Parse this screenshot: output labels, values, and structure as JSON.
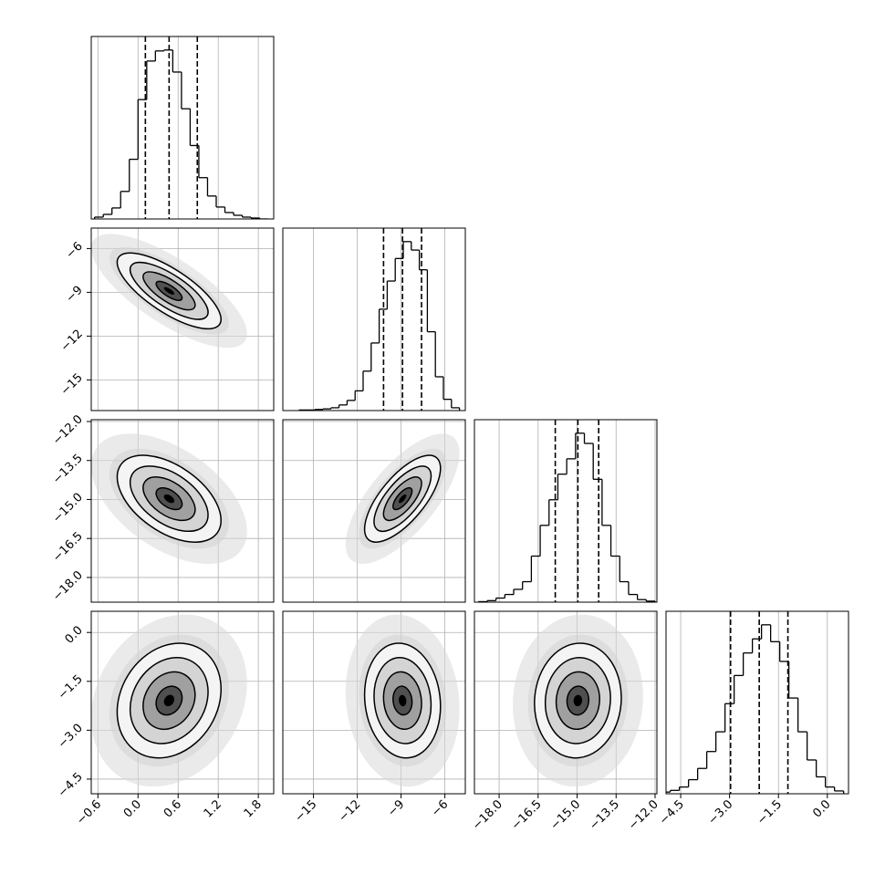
{
  "chart_data": {
    "type": "corner",
    "grid": true,
    "color": "#000000",
    "parameters": [
      {
        "lim": [
          -0.7,
          2.03
        ],
        "ticks": [
          {
            "value": -0.6,
            "label": "−0.6"
          },
          {
            "value": 0.0,
            "label": "0.0"
          },
          {
            "value": 0.6,
            "label": "0.6"
          },
          {
            "value": 1.2,
            "label": "1.2"
          },
          {
            "value": 1.8,
            "label": "1.8"
          }
        ],
        "bins": [
          -0.65,
          -0.52,
          -0.39,
          -0.26,
          -0.13,
          0.0,
          0.13,
          0.26,
          0.39,
          0.52,
          0.65,
          0.78,
          0.91,
          1.04,
          1.17,
          1.3,
          1.43,
          1.56,
          1.69,
          1.82,
          1.95
        ],
        "counts": [
          2,
          5,
          12,
          30,
          65,
          130,
          172,
          183,
          184,
          160,
          120,
          80,
          45,
          25,
          13,
          7,
          4,
          2,
          1,
          0
        ],
        "quantiles": [
          0.11,
          0.465,
          0.887
        ]
      },
      {
        "lim": [
          -17.1,
          -4.6
        ],
        "ticks": [
          {
            "value": -15,
            "label": "−15"
          },
          {
            "value": -12,
            "label": "−12"
          },
          {
            "value": -9,
            "label": "−9"
          },
          {
            "value": -6,
            "label": "−6"
          }
        ],
        "bins": [
          -16.0,
          -15.45,
          -14.9,
          -14.35,
          -13.8,
          -13.25,
          -12.7,
          -12.15,
          -11.6,
          -11.05,
          -10.5,
          -9.95,
          -9.4,
          -8.85,
          -8.3,
          -7.75,
          -7.2,
          -6.65,
          -6.1,
          -5.55,
          -5.0
        ],
        "counts": [
          1,
          1,
          2,
          3,
          5,
          10,
          18,
          35,
          70,
          120,
          180,
          230,
          270,
          300,
          285,
          250,
          140,
          60,
          20,
          5
        ],
        "quantiles": [
          -10.2,
          -8.9,
          -7.6
        ]
      },
      {
        "lim": [
          -18.95,
          -11.93
        ],
        "ticks": [
          {
            "value": -18.0,
            "label": "−18.0"
          },
          {
            "value": -16.5,
            "label": "−16.5"
          },
          {
            "value": -15.0,
            "label": "−15.0"
          },
          {
            "value": -13.5,
            "label": "−13.5"
          },
          {
            "value": -12.0,
            "label": "−12.0"
          }
        ],
        "bins": [
          -18.8,
          -18.46,
          -18.12,
          -17.78,
          -17.44,
          -17.1,
          -16.76,
          -16.42,
          -16.08,
          -15.74,
          -15.4,
          -15.06,
          -14.72,
          -14.38,
          -14.04,
          -13.7,
          -13.36,
          -13.02,
          -12.68,
          -12.34,
          -12.0
        ],
        "counts": [
          1,
          3,
          8,
          15,
          25,
          40,
          90,
          150,
          200,
          250,
          280,
          330,
          310,
          240,
          150,
          90,
          40,
          15,
          5,
          2
        ],
        "quantiles": [
          -15.84,
          -14.97,
          -14.17
        ]
      },
      {
        "lim": [
          -4.95,
          0.65
        ],
        "ticks": [
          {
            "value": -4.5,
            "label": "−4.5"
          },
          {
            "value": -3.0,
            "label": "−3.0"
          },
          {
            "value": -1.5,
            "label": "−1.5"
          },
          {
            "value": 0.0,
            "label": "0.0"
          }
        ],
        "bins": [
          -5.1,
          -4.82,
          -4.54,
          -4.26,
          -3.98,
          -3.7,
          -3.42,
          -3.14,
          -2.86,
          -2.58,
          -2.3,
          -2.02,
          -1.74,
          -1.46,
          -1.18,
          -0.9,
          -0.62,
          -0.34,
          -0.06,
          0.22,
          0.5
        ],
        "counts": [
          3,
          6,
          12,
          25,
          45,
          75,
          110,
          160,
          210,
          250,
          275,
          300,
          270,
          235,
          170,
          110,
          60,
          30,
          12,
          5
        ],
        "quantiles": [
          -2.97,
          -2.09,
          -1.21
        ]
      }
    ],
    "correlations": [
      [],
      [
        -0.75
      ],
      [
        -0.5,
        0.7
      ],
      [
        0.2,
        -0.1,
        0.05
      ]
    ]
  }
}
